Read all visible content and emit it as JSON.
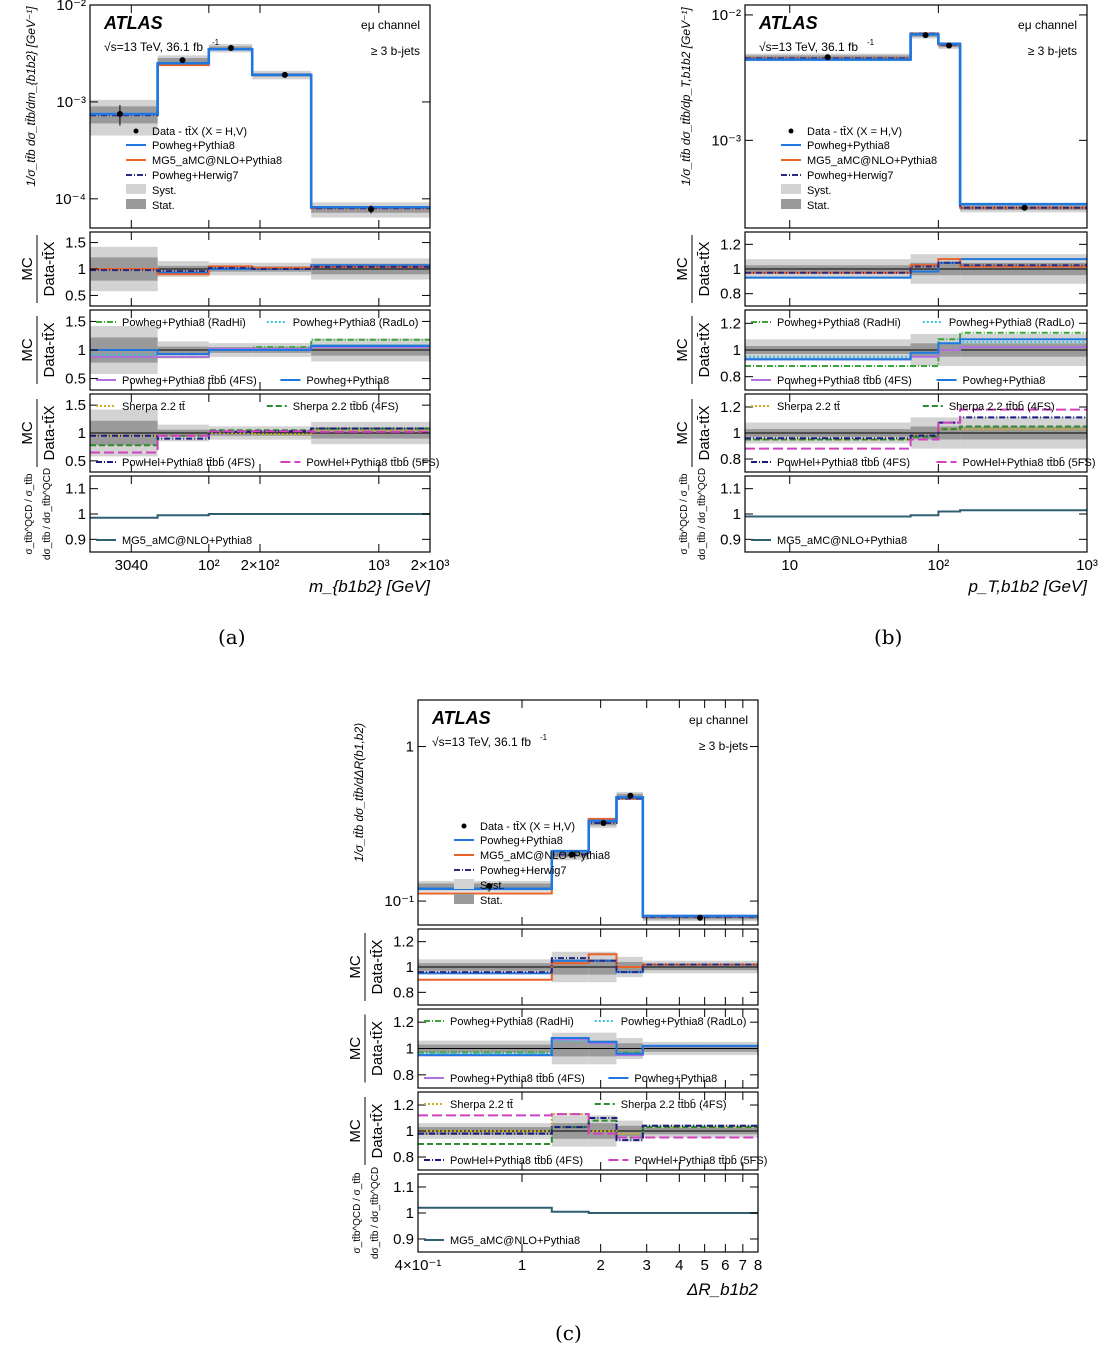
{
  "captions": [
    "(a)",
    "(b)",
    "(c)"
  ],
  "common": {
    "atlas": "ATLAS",
    "energy": "√s=13 TeV, 36.1 fb",
    "energy_sup": "-1",
    "channel": "eμ channel",
    "jets": "≥ 3 b-jets",
    "legend_main": [
      "Data - tt̄X (X = H,V)",
      "Powheg+Pythia8",
      "MG5_aMC@NLO+Pythia8",
      "Powheg+Herwig7",
      "Syst.",
      "Stat."
    ],
    "ratio_ylabel": [
      "MC",
      "Data-tt̄X"
    ],
    "qcd_ylabel": [
      "σ_tt̄b^QCD / σ_tt̄b",
      "dσ_tt̄b / dσ_tt̄b^QCD"
    ],
    "ratio2_legend": [
      "Powheg+Pythia8 (RadHi)",
      "Powheg+Pythia8 (RadLo)",
      "Powheg+Pythia8 tt̄bb̄ (4FS)",
      "Powheg+Pythia8"
    ],
    "ratio3_legend": [
      "Sherpa 2.2 tt̄",
      "Sherpa 2.2 tt̄bb̄ (4FS)",
      "PowHel+Pythia8 tt̄bb̄ (4FS)",
      "PowHel+Pythia8 tt̄bb̄ (5FS)"
    ],
    "qcd_legend": "MG5_aMC@NLO+Pythia8",
    "colors": {
      "data": "#000000",
      "powheg": "#1f77e0",
      "mg5": "#e8622a",
      "herwig": "#2a2a80",
      "syst": "#d3d3d3",
      "stat": "#9a9a9a",
      "radhi": "#3aa63a",
      "radlo": "#40c0e0",
      "ttbb4fs": "#b070e0",
      "sherpa_tt": "#c8b020",
      "sherpa_ttbb": "#2e8b2e",
      "powhel4": "#1a1a80",
      "powhel5": "#d040c0",
      "qcd": "#2f5f70"
    }
  },
  "chart_data": [
    {
      "type": "line",
      "xlabel": "m_{b1b2} [GeV]",
      "ylabel": "1/σ_tt̄b dσ_tt̄b/dm_{b1b2} [GeV⁻¹]",
      "xscale": "log",
      "xlim": [
        20,
        2000
      ],
      "ylim": [
        5e-05,
        0.01
      ],
      "xticks": [
        [
          "3040",
          35
        ],
        [
          "10²",
          100
        ],
        [
          "2×10²",
          200
        ],
        [
          "10³",
          1000
        ],
        [
          "2×10³",
          2000
        ]
      ],
      "yticks": [
        [
          "10⁻²",
          0.01
        ],
        [
          "10⁻³",
          0.001
        ],
        [
          "10⁻⁴",
          0.0001
        ]
      ],
      "edges": [
        20,
        50,
        100,
        180,
        400,
        2000
      ],
      "data": [
        0.00075,
        0.0027,
        0.0036,
        0.0019,
        7.8e-05
      ],
      "data_x": [
        30,
        70,
        135,
        280,
        900
      ],
      "syst": [
        0.4,
        0.12,
        0.1,
        0.1,
        0.18
      ],
      "stat": [
        0.2,
        0.05,
        0.04,
        0.04,
        0.08
      ],
      "powheg": [
        0.00075,
        0.0025,
        0.0035,
        0.0019,
        8.2e-05
      ],
      "mg5": [
        0.00075,
        0.0024,
        0.0035,
        0.0019,
        8e-05
      ],
      "herwig": [
        0.00073,
        0.0025,
        0.0035,
        0.0019,
        8e-05
      ],
      "ratio_ylim": [
        0.3,
        1.7
      ],
      "ratio_yticks": [
        "0.5",
        "1",
        "1.5"
      ],
      "ratio_ytick_vals": [
        0.5,
        1.0,
        1.5
      ],
      "r_syst": [
        0.42,
        0.15,
        0.12,
        0.12,
        0.2
      ],
      "r_stat": [
        0.22,
        0.06,
        0.05,
        0.05,
        0.1
      ],
      "r1": {
        "powheg": [
          1.0,
          0.93,
          1.0,
          1.0,
          1.07
        ],
        "mg5": [
          1.0,
          0.9,
          1.05,
          1.02,
          1.04
        ],
        "herwig": [
          0.98,
          0.96,
          1.02,
          1.0,
          1.04
        ]
      },
      "r2": {
        "radhi": [
          0.88,
          0.88,
          1.02,
          1.05,
          1.18
        ],
        "radlo": [
          0.92,
          0.93,
          1.02,
          1.0,
          1.08
        ],
        "ttbb4fs": [
          0.88,
          0.88,
          1.02,
          1.02,
          1.05
        ],
        "powheg": [
          1.0,
          0.93,
          1.0,
          1.0,
          1.07
        ]
      },
      "r3": {
        "sherpa_tt": [
          0.95,
          0.95,
          1.0,
          0.98,
          1.05
        ],
        "sherpa_ttbb": [
          0.78,
          0.95,
          1.05,
          1.05,
          1.08
        ],
        "powhel4": [
          0.95,
          0.9,
          1.02,
          1.03,
          1.08
        ],
        "powhel5": [
          0.65,
          0.95,
          1.03,
          1.03,
          1.02
        ]
      },
      "qcd_ylim": [
        0.85,
        1.15
      ],
      "qcd_yticks": [
        "0.9",
        "1",
        "1.1"
      ],
      "qcd_ytick_vals": [
        0.9,
        1.0,
        1.1
      ],
      "qcd": [
        0.985,
        0.995,
        1.0,
        1.0,
        1.0
      ]
    },
    {
      "type": "line",
      "xlabel": "p_T,b1b2 [GeV]",
      "ylabel": "1/σ_tt̄b dσ_tt̄b/dp_T,b1b2 [GeV⁻¹]",
      "xscale": "log",
      "xlim": [
        5,
        1000
      ],
      "ylim": [
        0.0002,
        0.012
      ],
      "xticks": [
        [
          "10",
          10
        ],
        [
          "10²",
          100
        ],
        [
          "10³",
          1000
        ]
      ],
      "yticks": [
        [
          "10⁻²",
          0.01
        ],
        [
          "10⁻³",
          0.001
        ]
      ],
      "edges": [
        5,
        65,
        100,
        140,
        1000
      ],
      "data": [
        0.0046,
        0.0069,
        0.0057,
        0.00029
      ],
      "data_x": [
        18,
        82,
        118,
        380
      ],
      "syst": [
        0.07,
        0.06,
        0.06,
        0.08
      ],
      "stat": [
        0.035,
        0.03,
        0.03,
        0.04
      ],
      "powheg": [
        0.0044,
        0.007,
        0.0059,
        0.00031
      ],
      "mg5": [
        0.0045,
        0.0071,
        0.0058,
        0.00029
      ],
      "herwig": [
        0.0045,
        0.0071,
        0.0058,
        0.00029
      ],
      "ratio_ylim": [
        0.7,
        1.3
      ],
      "ratio_yticks": [
        "0.8",
        "1",
        "1.2"
      ],
      "ratio_ytick_vals": [
        0.8,
        1.0,
        1.2
      ],
      "r_syst": [
        0.08,
        0.12,
        0.12,
        0.12
      ],
      "r_stat": [
        0.03,
        0.05,
        0.05,
        0.05
      ],
      "r1": {
        "powheg": [
          0.93,
          0.98,
          1.05,
          1.08
        ],
        "mg5": [
          0.97,
          1.03,
          1.08,
          1.02
        ],
        "herwig": [
          0.97,
          1.02,
          1.05,
          1.03
        ]
      },
      "r2": {
        "radhi": [
          0.88,
          0.88,
          1.08,
          1.13
        ],
        "radlo": [
          0.95,
          0.98,
          1.05,
          1.06
        ],
        "ttbb4fs": [
          0.93,
          0.95,
          1.0,
          1.02
        ],
        "powheg": [
          0.93,
          0.98,
          1.05,
          1.08
        ]
      },
      "r3": {
        "sherpa_tt": [
          0.95,
          0.98,
          1.03,
          1.03
        ],
        "sherpa_ttbb": [
          0.95,
          0.97,
          1.03,
          1.05
        ],
        "powhel4": [
          0.96,
          0.98,
          1.08,
          1.12
        ],
        "powhel5": [
          0.88,
          0.95,
          1.08,
          1.18
        ]
      },
      "qcd_ylim": [
        0.85,
        1.15
      ],
      "qcd_yticks": [
        "0.9",
        "1",
        "1.1"
      ],
      "qcd_ytick_vals": [
        0.9,
        1.0,
        1.1
      ],
      "qcd": [
        0.99,
        0.995,
        1.01,
        1.015
      ]
    },
    {
      "type": "line",
      "xlabel": "ΔR_b1b2",
      "ylabel": "1/σ_tt̄b dσ_tt̄b/dΔR(b1,b2)",
      "xscale": "log",
      "xlim": [
        0.4,
        8
      ],
      "ylim": [
        0.07,
        2
      ],
      "xticks": [
        [
          "4×10⁻¹",
          0.4
        ],
        [
          "1",
          1
        ],
        [
          "2",
          2
        ],
        [
          "3",
          3
        ],
        [
          "4",
          4
        ],
        [
          "5",
          5
        ],
        [
          "6",
          6
        ],
        [
          "7",
          7
        ],
        [
          "8",
          8
        ]
      ],
      "yticks": [
        [
          "1",
          1
        ],
        [
          "10⁻¹",
          0.1
        ]
      ],
      "edges": [
        0.4,
        1.3,
        1.8,
        2.3,
        2.9,
        8
      ],
      "data": [
        0.125,
        0.2,
        0.32,
        0.48,
        0.078
      ],
      "data_x": [
        0.75,
        1.55,
        2.05,
        2.6,
        4.8
      ],
      "syst": [
        0.08,
        0.08,
        0.07,
        0.06,
        0.05
      ],
      "stat": [
        0.04,
        0.04,
        0.035,
        0.03,
        0.025
      ],
      "powheg": [
        0.12,
        0.21,
        0.33,
        0.47,
        0.08
      ],
      "mg5": [
        0.112,
        0.21,
        0.34,
        0.46,
        0.079
      ],
      "herwig": [
        0.12,
        0.2,
        0.32,
        0.46,
        0.079
      ],
      "ratio_ylim": [
        0.7,
        1.3
      ],
      "ratio_yticks": [
        "0.8",
        "1",
        "1.2"
      ],
      "ratio_ytick_vals": [
        0.8,
        1.0,
        1.2
      ],
      "r_syst": [
        0.06,
        0.12,
        0.12,
        0.08,
        0.05
      ],
      "r_stat": [
        0.03,
        0.06,
        0.06,
        0.04,
        0.025
      ],
      "r1": {
        "powheg": [
          0.95,
          1.05,
          1.05,
          0.96,
          1.02
        ],
        "mg5": [
          0.9,
          1.03,
          1.1,
          1.0,
          1.02
        ],
        "herwig": [
          0.96,
          1.07,
          1.05,
          0.96,
          1.02
        ]
      },
      "r2": {
        "radhi": [
          0.97,
          1.07,
          1.05,
          0.97,
          1.02
        ],
        "radlo": [
          0.96,
          1.06,
          1.04,
          0.96,
          1.02
        ],
        "ttbb4fs": [
          0.95,
          1.07,
          1.04,
          0.95,
          1.02
        ],
        "powheg": [
          0.95,
          1.08,
          1.05,
          0.96,
          1.02
        ]
      },
      "r3": {
        "sherpa_tt": [
          1.0,
          1.13,
          1.0,
          0.98,
          1.03
        ],
        "sherpa_ttbb": [
          0.9,
          1.03,
          1.08,
          0.95,
          1.03
        ],
        "powhel4": [
          0.98,
          1.03,
          1.1,
          0.93,
          1.04
        ],
        "powhel5": [
          1.12,
          1.13,
          0.98,
          0.95,
          0.95
        ]
      },
      "qcd_ylim": [
        0.85,
        1.15
      ],
      "qcd_yticks": [
        "0.9",
        "1",
        "1.1"
      ],
      "qcd_ytick_vals": [
        0.9,
        1.0,
        1.1
      ],
      "qcd": [
        1.02,
        1.005,
        1.0,
        1.0,
        1.0
      ]
    }
  ]
}
